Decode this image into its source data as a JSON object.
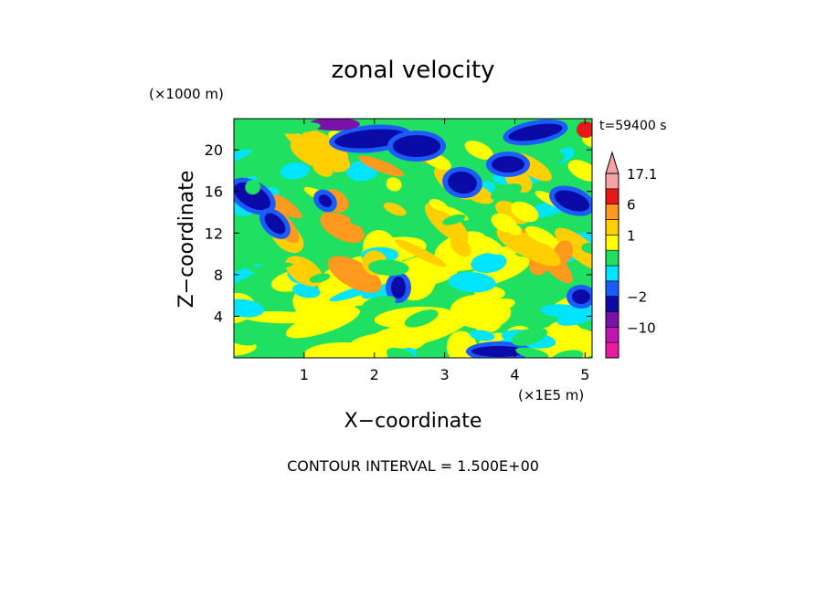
{
  "chart_data": {
    "type": "heatmap",
    "title": "zonal velocity",
    "xlabel": "X−coordinate",
    "ylabel": "Z−coordinate",
    "x_unit": "(×1E5 m)",
    "y_unit": "(×1000 m)",
    "time_label": "t=59400 s",
    "contour_label": "CONTOUR INTERVAL = 1.500E+00",
    "xlim": [
      0,
      5.1
    ],
    "ylim": [
      0,
      23
    ],
    "x_ticks": [
      {
        "value": 1,
        "label": "1"
      },
      {
        "value": 2,
        "label": "2"
      },
      {
        "value": 3,
        "label": "3"
      },
      {
        "value": 4,
        "label": "4"
      },
      {
        "value": 5,
        "label": "5"
      }
    ],
    "y_ticks": [
      {
        "value": 4,
        "label": "4"
      },
      {
        "value": 8,
        "label": "8"
      },
      {
        "value": 12,
        "label": "12"
      },
      {
        "value": 16,
        "label": "16"
      },
      {
        "value": 20,
        "label": "20"
      }
    ],
    "colorbar": {
      "levels": [
        {
          "color": "#e81ca0",
          "lo": -17.1,
          "hi": -14
        },
        {
          "color": "#c015b0",
          "lo": -14,
          "hi": -10
        },
        {
          "color": "#7b11a8",
          "lo": -10,
          "hi": -6
        },
        {
          "color": "#0a0aa6",
          "lo": -6,
          "hi": -2
        },
        {
          "color": "#1a5cff",
          "lo": -2,
          "hi": -1.2
        },
        {
          "color": "#00e4ff",
          "lo": -1.2,
          "hi": -0.4
        },
        {
          "color": "#1fe060",
          "lo": -0.4,
          "hi": 0.4
        },
        {
          "color": "#ffff00",
          "lo": 0.4,
          "hi": 1
        },
        {
          "color": "#ffcf00",
          "lo": 1,
          "hi": 2
        },
        {
          "color": "#ff9a1f",
          "lo": 2,
          "hi": 6
        },
        {
          "color": "#e81818",
          "lo": 6,
          "hi": 10
        },
        {
          "color": "#f4a4a4",
          "lo": 10,
          "hi": 17.1
        }
      ],
      "labels": [
        {
          "value": 17.1,
          "label": "17.1"
        },
        {
          "value": 6,
          "label": "6"
        },
        {
          "value": 1,
          "label": "1"
        },
        {
          "value": -2,
          "label": "−2"
        },
        {
          "value": -10,
          "label": "−10"
        }
      ]
    }
  }
}
